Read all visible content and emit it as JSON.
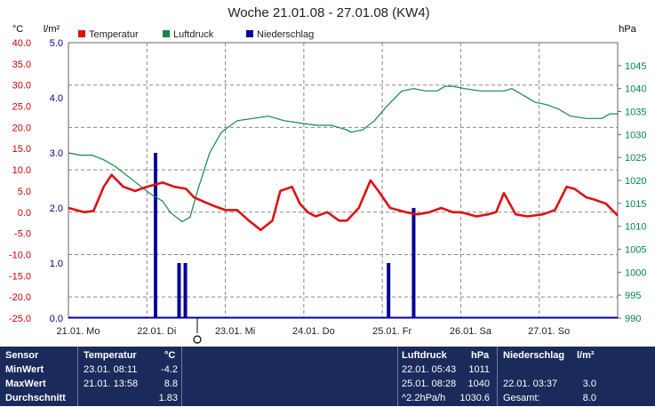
{
  "title": "Woche 21.01.08 - 27.01.08 (KW4)",
  "unit_labels": {
    "temp": "°C",
    "rain": "l/m²",
    "pressure": "hPa"
  },
  "colors": {
    "temp": "#dd1111",
    "pressure": "#118844",
    "rain": "#000099",
    "temp_axis": "#cc0000",
    "rain_axis": "#000088",
    "pressure_axis": "#008844"
  },
  "chart_data": {
    "type": "line",
    "title": "Woche 21.01.08 - 27.01.08 (KW4)",
    "legend_position": "top",
    "grid": true,
    "x_range_days": [
      0,
      7
    ],
    "x_ticks": [
      "21.01. Mo",
      "22.01. Di",
      "23.01. Mi",
      "24.01. Do",
      "25.01. Fr",
      "26.01. Sa",
      "27.01. So"
    ],
    "y_temp": {
      "label": "°C",
      "range": [
        -25,
        40
      ],
      "ticks": [
        "40.0",
        "35.0",
        "30.0",
        "25.0",
        "20.0",
        "15.0",
        "10.0",
        "5.0",
        "0.0",
        "-5.0",
        "-10.0",
        "-15.0",
        "-20.0",
        "-25.0"
      ]
    },
    "y_rain": {
      "label": "l/m²",
      "range": [
        0,
        5
      ],
      "ticks": [
        "5.0",
        "4.0",
        "3.0",
        "2.0",
        "1.0",
        "0.0"
      ]
    },
    "y_pressure": {
      "label": "hPa",
      "range": [
        990,
        1050
      ],
      "ticks": [
        "1045",
        "1040",
        "1035",
        "1030",
        "1025",
        "1020",
        "1015",
        "1010",
        "1005",
        "1000",
        "995",
        "990"
      ]
    },
    "series": [
      {
        "name": "Temperatur",
        "axis": "temp",
        "kind": "line",
        "x": [
          0,
          0.1,
          0.2,
          0.32,
          0.45,
          0.55,
          0.7,
          0.85,
          1.0,
          1.2,
          1.35,
          1.5,
          1.6,
          1.72,
          1.85,
          2.0,
          2.15,
          2.3,
          2.45,
          2.6,
          2.7,
          2.85,
          2.95,
          3.05,
          3.15,
          3.3,
          3.45,
          3.55,
          3.7,
          3.85,
          3.95,
          4.1,
          4.3,
          4.45,
          4.6,
          4.75,
          4.9,
          5.0,
          5.2,
          5.35,
          5.45,
          5.55,
          5.7,
          5.85,
          6.05,
          6.2,
          6.35,
          6.45,
          6.6,
          6.7,
          6.85,
          7.0
        ],
        "values": [
          1,
          0.5,
          0,
          0.3,
          6,
          8.8,
          6,
          5,
          6,
          7,
          6,
          5.5,
          3.5,
          2.5,
          1.5,
          0.5,
          0.5,
          -2,
          -4.2,
          -2,
          5,
          6,
          2,
          0,
          -1,
          0,
          -2,
          -2,
          1,
          7.5,
          5,
          1,
          0,
          -0.5,
          0,
          1,
          0,
          0,
          -1,
          -0.5,
          0,
          4.5,
          -0.5,
          -1,
          -0.5,
          0.5,
          6,
          5.5,
          3.5,
          3,
          2,
          -0.8
        ]
      },
      {
        "name": "Luftdruck",
        "axis": "pressure",
        "kind": "line",
        "x": [
          0,
          0.15,
          0.3,
          0.45,
          0.6,
          0.75,
          0.9,
          1.05,
          1.2,
          1.3,
          1.45,
          1.55,
          1.65,
          1.8,
          1.95,
          2.15,
          2.35,
          2.55,
          2.75,
          2.95,
          3.15,
          3.35,
          3.55,
          3.6,
          3.75,
          3.9,
          4.05,
          4.25,
          4.4,
          4.55,
          4.7,
          4.8,
          4.9,
          5.05,
          5.25,
          5.45,
          5.55,
          5.65,
          5.8,
          5.95,
          6.1,
          6.25,
          6.4,
          6.6,
          6.8,
          6.9,
          7.0
        ],
        "values": [
          1026,
          1025.5,
          1025.5,
          1024.5,
          1023,
          1021,
          1019,
          1017,
          1015.5,
          1013,
          1011,
          1012,
          1018,
          1026,
          1030.5,
          1033,
          1033.5,
          1034,
          1033,
          1032.5,
          1032,
          1032,
          1031,
          1030.5,
          1031,
          1033,
          1036,
          1039.5,
          1040,
          1039.5,
          1039.5,
          1040.5,
          1040.5,
          1040,
          1039.5,
          1039.5,
          1039.5,
          1040,
          1038.5,
          1037,
          1036.5,
          1035.5,
          1034,
          1033.5,
          1033.5,
          1034.5,
          1034.5
        ]
      },
      {
        "name": "Niederschlag",
        "axis": "rain",
        "kind": "bar",
        "x": [
          1.11,
          1.41,
          1.49,
          4.08,
          4.4
        ],
        "values": [
          3.0,
          1.0,
          1.0,
          1.0,
          2.0
        ]
      }
    ]
  },
  "stats": {
    "headers": {
      "sensor": "Sensor",
      "temp": "Temperatur",
      "temp_unit": "°C",
      "pressure": "Luftdruck",
      "pressure_unit": "hPa",
      "rain": "Niederschlag",
      "rain_unit": "l/m²"
    },
    "rows": [
      {
        "label": "MinWert",
        "temp_time": "23.01.  08:11",
        "temp_val": "-4.2",
        "pressure_time": "22.01.  05:43",
        "pressure_val": "1011",
        "rain_time": "",
        "rain_val": ""
      },
      {
        "label": "MaxWert",
        "temp_time": "21.01.  13:58",
        "temp_val": "8.8",
        "pressure_time": "25.01.  08:28",
        "pressure_val": "1040",
        "rain_time": "22.01.  03:37",
        "rain_val": "3.0"
      },
      {
        "label": "Durchschnitt",
        "temp_time": "",
        "temp_val": "1.83",
        "pressure_time": "^2.2hPa/h",
        "pressure_val": "1030.6",
        "rain_time": "Gesamt:",
        "rain_val": "8.0"
      }
    ]
  }
}
